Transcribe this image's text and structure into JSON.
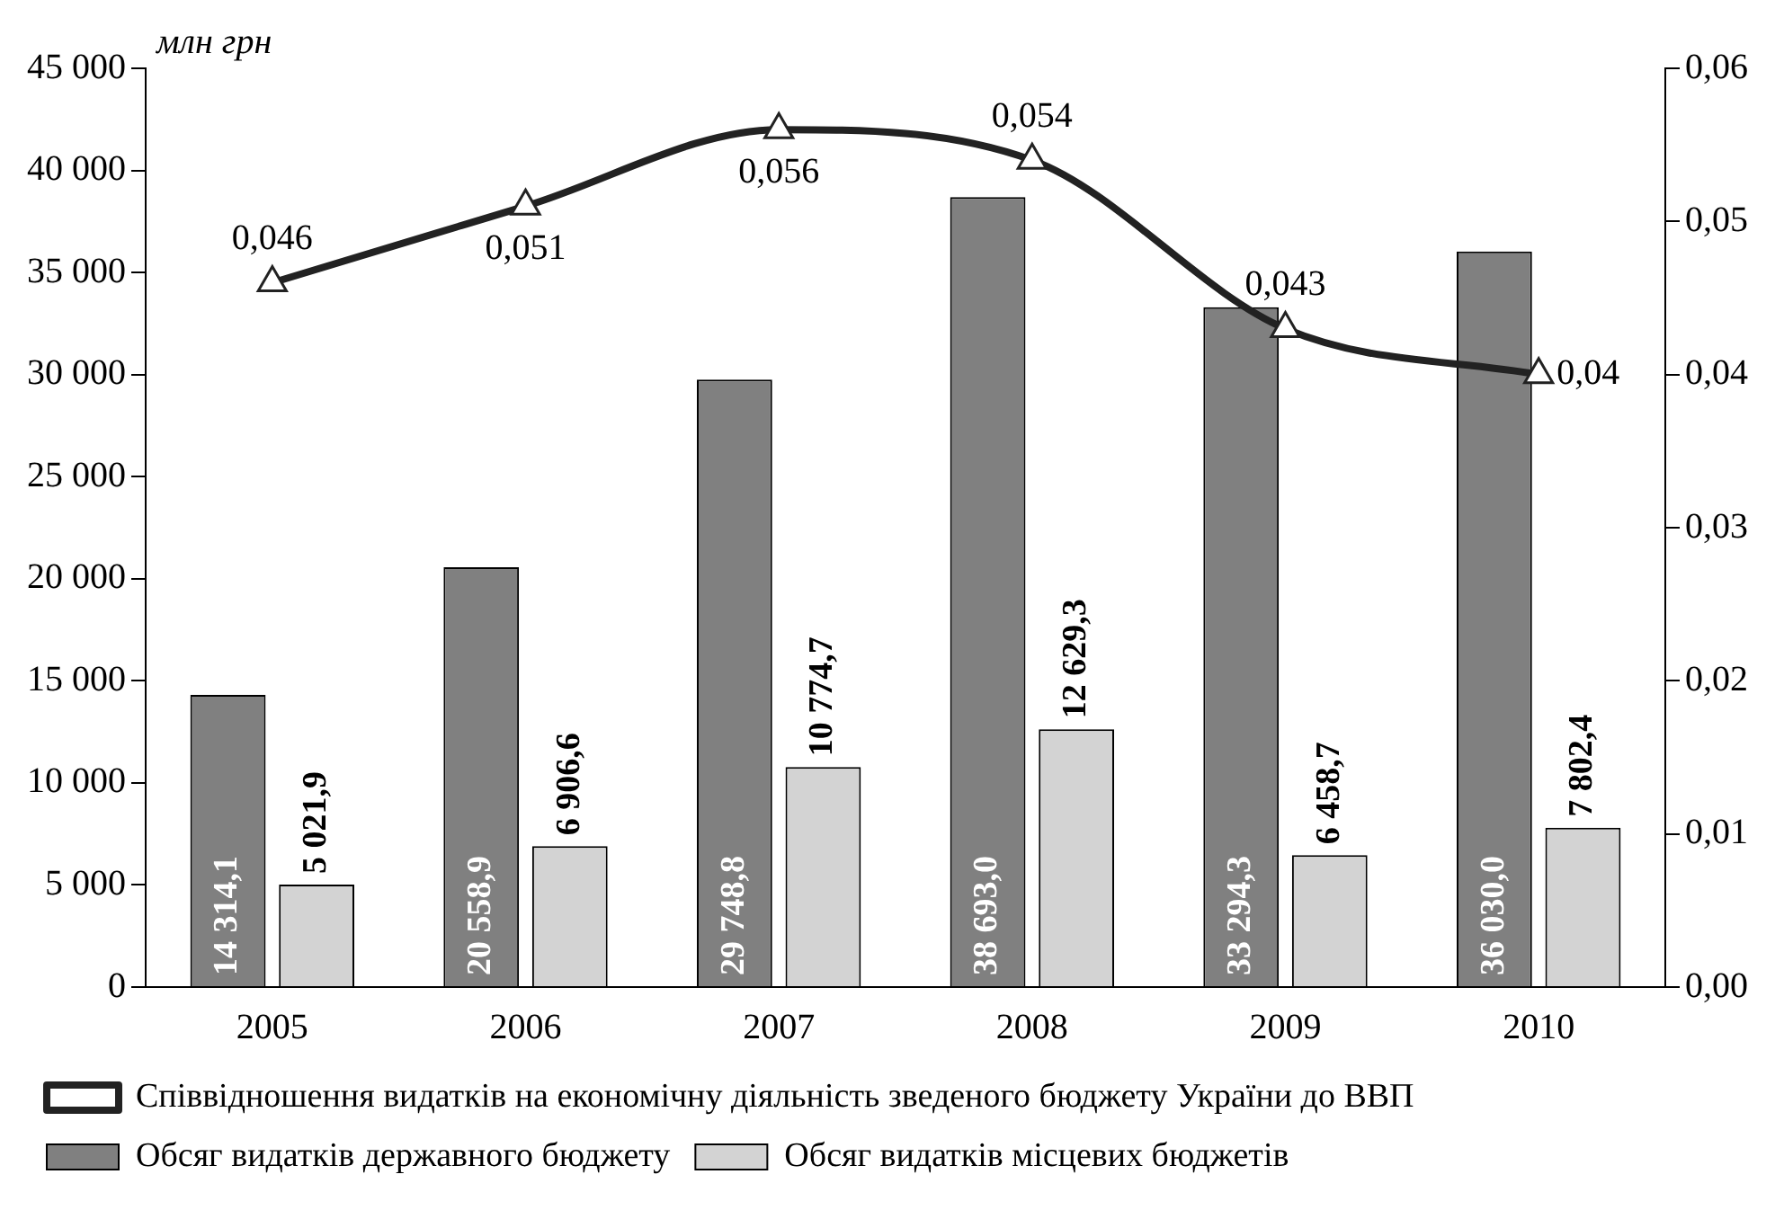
{
  "chart_data": {
    "type": "bar",
    "ylabel": "млн грн",
    "categories": [
      "2005",
      "2006",
      "2007",
      "2008",
      "2009",
      "2010"
    ],
    "series": [
      {
        "name": "Обсяг видатків державного бюджету",
        "color": "#808080",
        "values": [
          14314.1,
          20558.9,
          29748.8,
          38693.0,
          33294.3,
          36030.0
        ],
        "value_labels": [
          "14 314,1",
          "20 558,9",
          "29 748,8",
          "38 693,0",
          "33 294,3",
          "36 030,0"
        ]
      },
      {
        "name": "Обсяг видатків місцевих бюджетів",
        "color": "#d3d3d3",
        "values": [
          5021.9,
          6906.6,
          10774.7,
          12629.3,
          6458.7,
          7802.4
        ],
        "value_labels": [
          "5 021,9",
          "6 906,6",
          "10 774,7",
          "12 629,3",
          "6 458,7",
          "7 802,4"
        ]
      },
      {
        "name": "Співвідношення видатків на економічну діяльність зведеного бюджету України до ВВП",
        "type": "line",
        "axis": "y2",
        "color": "#222222",
        "marker": "triangle",
        "values": [
          0.046,
          0.051,
          0.056,
          0.054,
          0.043,
          0.04
        ],
        "value_labels": [
          "0,046",
          "0,051",
          "0,056",
          "0,054",
          "0,043",
          "0,04"
        ]
      }
    ],
    "ylim": [
      0,
      45000
    ],
    "yticks": [
      {
        "value": 0,
        "label": "0"
      },
      {
        "value": 5000,
        "label": "5 000"
      },
      {
        "value": 10000,
        "label": "10 000"
      },
      {
        "value": 15000,
        "label": "15 000"
      },
      {
        "value": 20000,
        "label": "20 000"
      },
      {
        "value": 25000,
        "label": "25 000"
      },
      {
        "value": 30000,
        "label": "30 000"
      },
      {
        "value": 35000,
        "label": "35 000"
      },
      {
        "value": 40000,
        "label": "40 000"
      },
      {
        "value": 45000,
        "label": "45 000"
      }
    ],
    "y2lim": [
      0,
      0.06
    ],
    "y2ticks": [
      {
        "value": 0,
        "label": "0,00"
      },
      {
        "value": 0.01,
        "label": "0,01"
      },
      {
        "value": 0.02,
        "label": "0,02"
      },
      {
        "value": 0.03,
        "label": "0,03"
      },
      {
        "value": 0.04,
        "label": "0,04"
      },
      {
        "value": 0.05,
        "label": "0,05"
      },
      {
        "value": 0.06,
        "label": "0,06"
      }
    ],
    "grid": false,
    "legend": "bottom"
  }
}
